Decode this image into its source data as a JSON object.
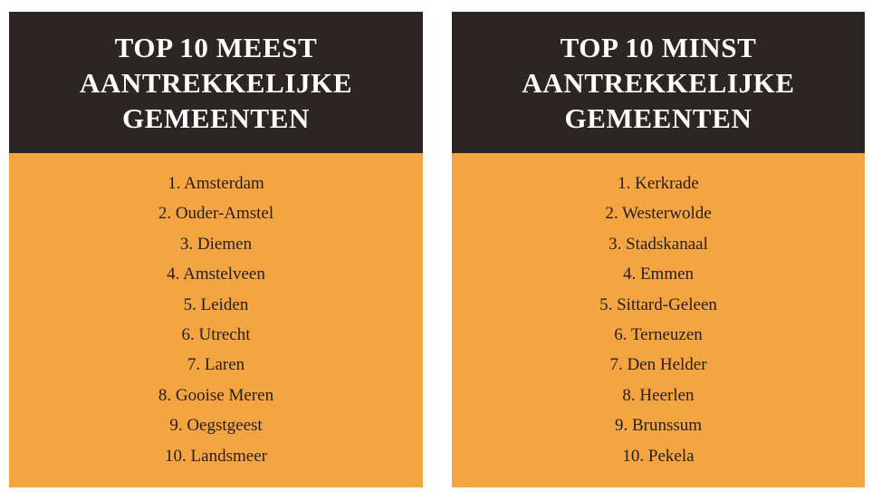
{
  "most": {
    "title_lines": [
      "TOP 10 MEEST",
      "AANTREKKELIJKE",
      "GEMEENTEN"
    ],
    "items": [
      "1. Amsterdam",
      "2. Ouder-Amstel",
      "3. Diemen",
      "4. Amstelveen",
      "5. Leiden",
      "6. Utrecht",
      "7. Laren",
      "8. Gooise Meren",
      "9. Oegstgeest",
      "10. Landsmeer"
    ]
  },
  "least": {
    "title_lines": [
      "TOP 10 MINST",
      "AANTREKKELIJKE",
      "GEMEENTEN"
    ],
    "items": [
      "1. Kerkrade",
      "2. Westerwolde",
      "3. Stadskanaal",
      "4. Emmen",
      "5. Sittard-Geleen",
      "6. Terneuzen",
      "7. Den Helder",
      "8. Heerlen",
      "9. Brunssum",
      "10. Pekela"
    ]
  },
  "colors": {
    "header_bg": "#2b2623",
    "header_text": "#ffffff",
    "body_bg": "#f4a441",
    "body_text": "#241f1c"
  }
}
